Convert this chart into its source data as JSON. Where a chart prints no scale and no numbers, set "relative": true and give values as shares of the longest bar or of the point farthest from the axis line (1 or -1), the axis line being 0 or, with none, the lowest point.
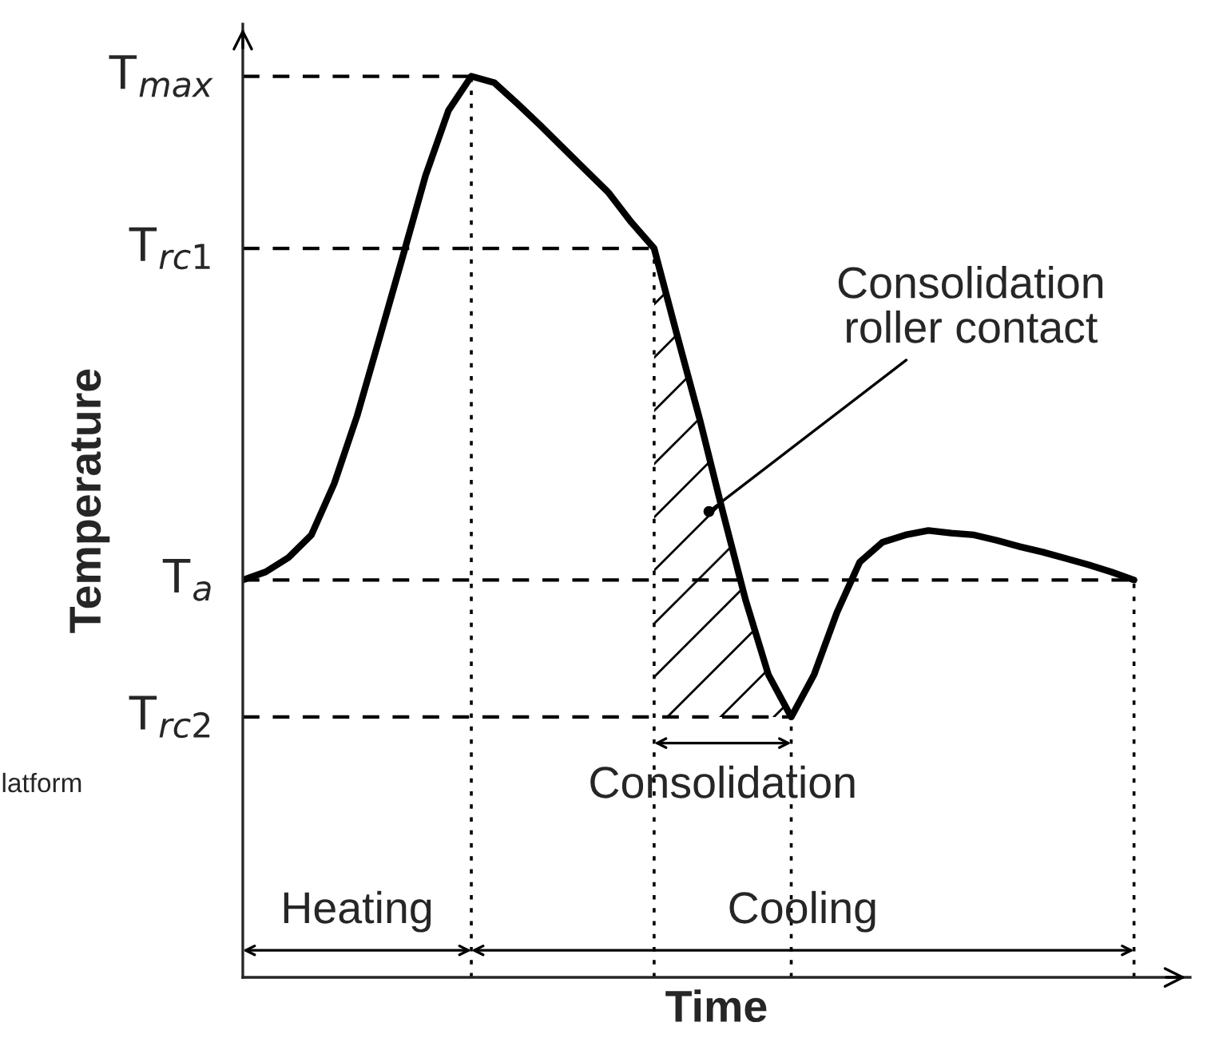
{
  "chart_data": {
    "type": "line",
    "relative": true,
    "xlabel": "Time",
    "ylabel": "Temperature",
    "categories": [
      null,
      null,
      null,
      null,
      null,
      null,
      null,
      null,
      null,
      null,
      null,
      null,
      null,
      null,
      null,
      null,
      null,
      null,
      null,
      null,
      null,
      null,
      null,
      null,
      null,
      null,
      null,
      null,
      null,
      null,
      null,
      null,
      null,
      null,
      null,
      null,
      null,
      null,
      null,
      null
    ],
    "series": [
      {
        "color": "#000000",
        "values": [
          0.441,
          0.45,
          0.466,
          0.491,
          0.548,
          0.623,
          0.711,
          0.8,
          0.89,
          0.962,
          1,
          0.993,
          0.97,
          0.946,
          0.921,
          0.896,
          0.871,
          0.838,
          0.809,
          0.713,
          0.619,
          0.517,
          0.419,
          0.336,
          0.289,
          0.336,
          0.405,
          0.461,
          0.483,
          0.491,
          0.496,
          0.493,
          0.491,
          0.485,
          0.478,
          0.472,
          0.465,
          0.458,
          0.45,
          0.441
        ]
      }
    ],
    "ref_lines": [
      {
        "axis": "y",
        "value": 1,
        "label": "T$_{max}$",
        "line_style": "dashed"
      },
      {
        "axis": "y",
        "value": 0.809,
        "label": "T$_{rc1}$",
        "line_style": "dashed"
      },
      {
        "axis": "y",
        "value": 0.441,
        "label": "T$_{a}$",
        "line_style": "dashed"
      },
      {
        "axis": "y",
        "value": 0.289,
        "label": "T$_{rc2}$",
        "line_style": "dashed"
      }
    ],
    "annotations": [
      "Heating",
      "Cooling",
      "Consolidation",
      "Consolidation\nroller contact",
      "latform"
    ]
  }
}
